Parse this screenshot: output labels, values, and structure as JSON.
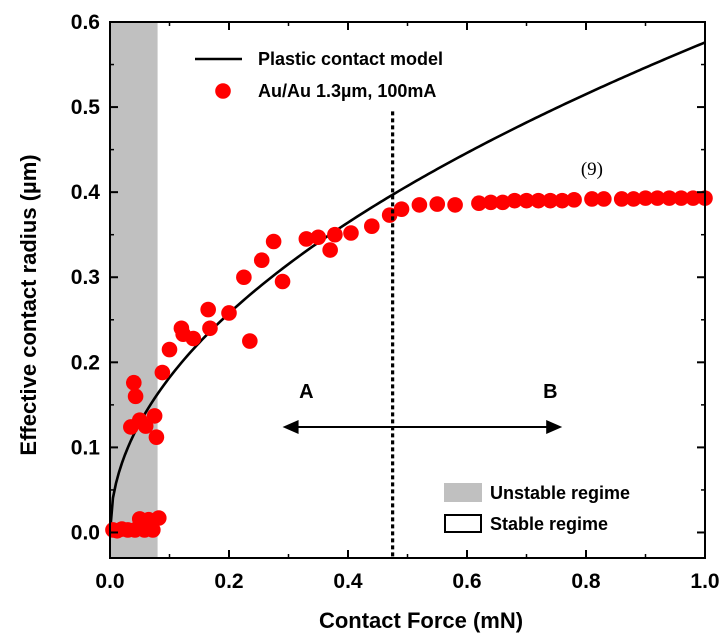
{
  "chart_data": {
    "type": "scatter",
    "xlabel": "Contact Force (mN)",
    "ylabel": "Effective contact radius (µm)",
    "xlim": [
      0.0,
      1.0
    ],
    "ylim": [
      -0.03,
      0.6
    ],
    "x_ticks": [
      "0.0",
      "0.2",
      "0.4",
      "0.6",
      "0.8",
      "1.0"
    ],
    "x_tick_values": [
      0.0,
      0.2,
      0.4,
      0.6,
      0.8,
      1.0
    ],
    "y_ticks": [
      "0.0",
      "0.1",
      "0.2",
      "0.3",
      "0.4",
      "0.5",
      "0.6"
    ],
    "y_tick_values": [
      0.0,
      0.1,
      0.2,
      0.3,
      0.4,
      0.5,
      0.6
    ],
    "grid": false,
    "legend_placement": "top-left",
    "series": [
      {
        "name": "Plastic contact model",
        "kind": "line",
        "color": "#000000",
        "model": "sqrt",
        "coefficient": 0.576,
        "x_range": [
          0.0,
          1.0
        ]
      },
      {
        "name": "Au/Au 1.3µm, 100mA",
        "kind": "scatter",
        "color": "#ff0000",
        "points": [
          [
            0.005,
            0.003
          ],
          [
            0.012,
            0.002
          ],
          [
            0.02,
            0.004
          ],
          [
            0.03,
            0.003
          ],
          [
            0.042,
            0.003
          ],
          [
            0.05,
            0.016
          ],
          [
            0.058,
            0.003
          ],
          [
            0.065,
            0.015
          ],
          [
            0.072,
            0.003
          ],
          [
            0.082,
            0.017
          ],
          [
            0.035,
            0.124
          ],
          [
            0.04,
            0.176
          ],
          [
            0.043,
            0.16
          ],
          [
            0.05,
            0.132
          ],
          [
            0.06,
            0.125
          ],
          [
            0.075,
            0.137
          ],
          [
            0.078,
            0.112
          ],
          [
            0.088,
            0.188
          ],
          [
            0.1,
            0.215
          ],
          [
            0.12,
            0.24
          ],
          [
            0.123,
            0.233
          ],
          [
            0.14,
            0.228
          ],
          [
            0.165,
            0.262
          ],
          [
            0.168,
            0.24
          ],
          [
            0.2,
            0.258
          ],
          [
            0.225,
            0.3
          ],
          [
            0.235,
            0.225
          ],
          [
            0.255,
            0.32
          ],
          [
            0.275,
            0.342
          ],
          [
            0.29,
            0.295
          ],
          [
            0.33,
            0.345
          ],
          [
            0.35,
            0.347
          ],
          [
            0.37,
            0.332
          ],
          [
            0.378,
            0.35
          ],
          [
            0.405,
            0.352
          ],
          [
            0.44,
            0.36
          ],
          [
            0.47,
            0.373
          ],
          [
            0.49,
            0.38
          ],
          [
            0.52,
            0.385
          ],
          [
            0.55,
            0.386
          ],
          [
            0.58,
            0.385
          ],
          [
            0.62,
            0.387
          ],
          [
            0.64,
            0.388
          ],
          [
            0.66,
            0.388
          ],
          [
            0.68,
            0.39
          ],
          [
            0.7,
            0.39
          ],
          [
            0.72,
            0.39
          ],
          [
            0.74,
            0.39
          ],
          [
            0.76,
            0.39
          ],
          [
            0.78,
            0.391
          ],
          [
            0.81,
            0.392
          ],
          [
            0.83,
            0.392
          ],
          [
            0.86,
            0.392
          ],
          [
            0.88,
            0.392
          ],
          [
            0.9,
            0.393
          ],
          [
            0.92,
            0.393
          ],
          [
            0.94,
            0.393
          ],
          [
            0.96,
            0.393
          ],
          [
            0.98,
            0.393
          ],
          [
            1.0,
            0.393
          ]
        ]
      }
    ],
    "regions": [
      {
        "name": "Unstable regime",
        "x_range": [
          0.0,
          0.08
        ],
        "color": "#c0c0c0"
      },
      {
        "name": "Stable regime",
        "x_range": [
          0.08,
          1.0
        ],
        "color": "#ffffff"
      }
    ],
    "divider": {
      "x": 0.475,
      "style": "dotted"
    },
    "annotations": [
      {
        "text": "A",
        "x": 0.33,
        "y": 0.158
      },
      {
        "text": "B",
        "x": 0.74,
        "y": 0.158
      },
      {
        "text": "(9)",
        "x": 0.81,
        "y": 0.42
      }
    ],
    "arrow": {
      "x_start": 0.29,
      "x_end": 0.76,
      "y": 0.124
    }
  }
}
